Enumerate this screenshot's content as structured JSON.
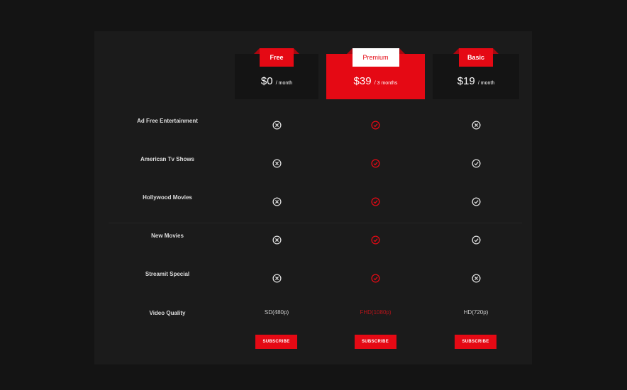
{
  "accent": "#e50914",
  "plans": [
    {
      "name": "Free",
      "price": "$0",
      "period": "/ month",
      "quality": "SD(480p)",
      "subscribe": "SUBSCRIBE"
    },
    {
      "name": "Premium",
      "price": "$39",
      "period": "/ 3 months",
      "quality": "FHD(1080p)",
      "subscribe": "SUBSCRIBE"
    },
    {
      "name": "Basic",
      "price": "$19",
      "period": "/ month",
      "quality": "HD(720p)",
      "subscribe": "SUBSCRIBE"
    }
  ],
  "features": [
    {
      "label": "Ad Free Entertainment",
      "values": [
        "x",
        "check",
        "x"
      ]
    },
    {
      "label": "American Tv Shows",
      "values": [
        "x",
        "check",
        "check"
      ]
    },
    {
      "label": "Hollywood Movies",
      "values": [
        "x",
        "check",
        "check"
      ]
    },
    {
      "label": "New Movies",
      "values": [
        "x",
        "check",
        "check"
      ]
    },
    {
      "label": "Streamit Special",
      "values": [
        "x",
        "check",
        "x"
      ]
    }
  ],
  "quality_label": "Video Quality"
}
